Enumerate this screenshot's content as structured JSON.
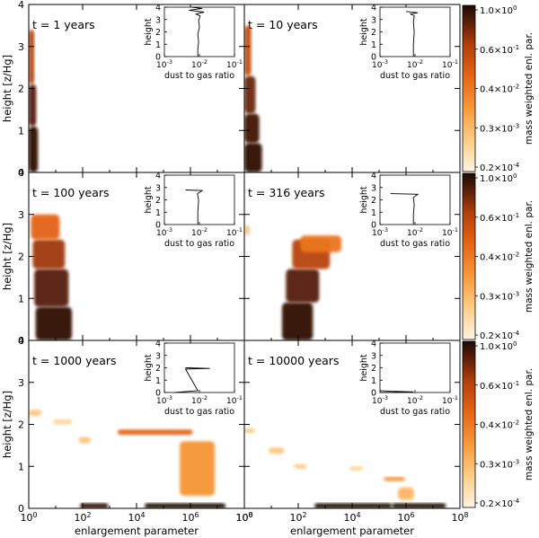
{
  "panel_labels": [
    "t = 1 years",
    "t = 10 years",
    "t = 100 years",
    "t = 316 years",
    "t = 1000 years",
    "t = 10000 years"
  ],
  "axes": {
    "ylabel": "height [z/Hg]",
    "xlabel": "enlargement parameter",
    "y_ticks": [
      "0",
      "1",
      "2",
      "3",
      "4"
    ],
    "x_ticks": [
      "10^0",
      "10^2",
      "10^4",
      "10^6",
      "10^8"
    ],
    "inset_ylabel": "height",
    "inset_xlabel": "dust to gas ratio",
    "inset_y_ticks": [
      "0",
      "1",
      "2",
      "3",
      "4"
    ],
    "inset_x_ticks": [
      "10^-3",
      "10^-2",
      "10^-1"
    ]
  },
  "colorbar": {
    "label": "mass weighted enl. par.",
    "left_ticks": [
      "1.0",
      "0.6",
      "0.4",
      "0.3",
      "0.2"
    ],
    "right_ticks": [
      "10^0",
      "10^-1",
      "10^-2",
      "10^-3",
      "10^-4"
    ],
    "colors": [
      "#fff3e4",
      "#ffd08c",
      "#f79a3a",
      "#e46414",
      "#b2400a",
      "#5a1e08",
      "#1c0a04"
    ]
  },
  "chart_data": {
    "type": "heatmap",
    "xscale": "log",
    "xlim": [
      1,
      100000000.0
    ],
    "ylim": [
      0,
      4
    ],
    "inset": {
      "xscale": "log",
      "xlim": [
        0.001,
        0.1
      ],
      "ylim": [
        0,
        4
      ]
    },
    "panels": [
      {
        "label": "t = 1 years",
        "blobs": [
          {
            "x0": 1,
            "x1": 2.2,
            "y0": 0,
            "y1": 1.1,
            "v": 0.95
          },
          {
            "x0": 1,
            "x1": 1.9,
            "y0": 1.1,
            "y1": 2.1,
            "v": 0.85
          },
          {
            "x0": 1,
            "x1": 1.6,
            "y0": 2.1,
            "y1": 3.4,
            "v": 0.65
          }
        ],
        "inset_profile": [
          [
            0.009,
            0
          ],
          [
            0.009,
            0.6
          ],
          [
            0.0095,
            1.2
          ],
          [
            0.009,
            1.8
          ],
          [
            0.01,
            2.4
          ],
          [
            0.0095,
            2.9
          ],
          [
            0.0105,
            3.3
          ],
          [
            0.008,
            3.45
          ],
          [
            0.0135,
            3.6
          ],
          [
            0.005,
            3.75
          ],
          [
            0.012,
            3.9
          ],
          [
            0.006,
            4
          ]
        ]
      },
      {
        "label": "t = 10 years",
        "blobs": [
          {
            "x0": 1,
            "x1": 4.5,
            "y0": 0,
            "y1": 0.7,
            "v": 0.95
          },
          {
            "x0": 1,
            "x1": 3.6,
            "y0": 0.7,
            "y1": 1.4,
            "v": 0.9
          },
          {
            "x0": 1,
            "x1": 2.6,
            "y0": 1.4,
            "y1": 2.3,
            "v": 0.8
          },
          {
            "x0": 1,
            "x1": 1.8,
            "y0": 2.3,
            "y1": 3.5,
            "v": 0.6
          }
        ],
        "inset_profile": [
          [
            0.009,
            0
          ],
          [
            0.009,
            1
          ],
          [
            0.0095,
            2
          ],
          [
            0.009,
            2.8
          ],
          [
            0.0095,
            3.3
          ],
          [
            0.0075,
            3.45
          ],
          [
            0.012,
            3.55
          ],
          [
            0.0055,
            3.65
          ]
        ]
      },
      {
        "label": "t = 100 years",
        "blobs": [
          {
            "x0": 1.8,
            "x1": 40,
            "y0": 0,
            "y1": 0.8,
            "v": 0.95
          },
          {
            "x0": 1.6,
            "x1": 30,
            "y0": 0.8,
            "y1": 1.7,
            "v": 0.85
          },
          {
            "x0": 1.4,
            "x1": 22,
            "y0": 1.7,
            "y1": 2.4,
            "v": 0.7
          },
          {
            "x0": 1.2,
            "x1": 14,
            "y0": 2.4,
            "y1": 3.0,
            "v": 0.5
          }
        ],
        "inset_profile": [
          [
            0.009,
            0
          ],
          [
            0.009,
            1
          ],
          [
            0.0095,
            2
          ],
          [
            0.0088,
            2.5
          ],
          [
            0.012,
            2.75
          ],
          [
            0.004,
            2.8
          ]
        ]
      },
      {
        "label": "t = 316 years",
        "blobs": [
          {
            "x0": 25,
            "x1": 350,
            "y0": 0,
            "y1": 0.9,
            "v": 0.95
          },
          {
            "x0": 35,
            "x1": 600,
            "y0": 0.9,
            "y1": 1.7,
            "v": 0.85
          },
          {
            "x0": 60,
            "x1": 1500,
            "y0": 1.7,
            "y1": 2.4,
            "v": 0.65
          },
          {
            "x0": 120,
            "x1": 4000,
            "y0": 2.1,
            "y1": 2.5,
            "v": 0.45
          },
          {
            "x0": 1,
            "x1": 1.6,
            "y0": 2.5,
            "y1": 2.75,
            "v": 0.2
          }
        ],
        "inset_profile": [
          [
            0.009,
            0
          ],
          [
            0.009,
            0.8
          ],
          [
            0.0095,
            1.6
          ],
          [
            0.009,
            2.2
          ],
          [
            0.012,
            2.45
          ],
          [
            0.002,
            2.5
          ]
        ]
      },
      {
        "label": "t = 1000 years",
        "blobs": [
          {
            "x0": 1,
            "x1": 3,
            "y0": 2.2,
            "y1": 2.35,
            "v": 0.2
          },
          {
            "x0": 8,
            "x1": 40,
            "y0": 2.0,
            "y1": 2.12,
            "v": 0.15
          },
          {
            "x0": 70,
            "x1": 200,
            "y0": 1.55,
            "y1": 1.7,
            "v": 0.2
          },
          {
            "x0": 2000,
            "x1": 1200000,
            "y0": 1.75,
            "y1": 1.88,
            "v": 0.5
          },
          {
            "x0": 400000,
            "x1": 8000000,
            "y0": 0.3,
            "y1": 1.6,
            "v": 0.35
          },
          {
            "x0": 80,
            "x1": 900,
            "y0": 0,
            "y1": 0.12,
            "v": 0.95
          },
          {
            "x0": 20000,
            "x1": 20000000,
            "y0": 0,
            "y1": 0.12,
            "v": 1.0
          }
        ],
        "inset_profile": [
          [
            0.002,
            0
          ],
          [
            0.009,
            0.15
          ],
          [
            0.004,
            1.9
          ],
          [
            0.02,
            1.95
          ],
          [
            0.004,
            2.0
          ]
        ]
      },
      {
        "label": "t = 10000 years",
        "blobs": [
          {
            "x0": 1,
            "x1": 2.5,
            "y0": 1.8,
            "y1": 1.9,
            "v": 0.2
          },
          {
            "x0": 8,
            "x1": 30,
            "y0": 1.3,
            "y1": 1.45,
            "v": 0.2
          },
          {
            "x0": 70,
            "x1": 200,
            "y0": 0.95,
            "y1": 1.05,
            "v": 0.2
          },
          {
            "x0": 8000,
            "x1": 25000,
            "y0": 0.9,
            "y1": 1.0,
            "v": 0.15
          },
          {
            "x0": 150000,
            "x1": 900000,
            "y0": 0.65,
            "y1": 0.75,
            "v": 0.35
          },
          {
            "x0": 500000,
            "x1": 2000000,
            "y0": 0.2,
            "y1": 0.5,
            "v": 0.25
          },
          {
            "x0": 400,
            "x1": 300000,
            "y0": 0,
            "y1": 0.12,
            "v": 1.0
          },
          {
            "x0": 300000,
            "x1": 30000000,
            "y0": 0,
            "y1": 0.12,
            "v": 1.0
          }
        ],
        "inset_profile": [
          [
            0.001,
            0
          ],
          [
            0.009,
            0.05
          ],
          [
            0.002,
            0.1
          ],
          [
            0.001,
            0.15
          ]
        ]
      }
    ]
  }
}
